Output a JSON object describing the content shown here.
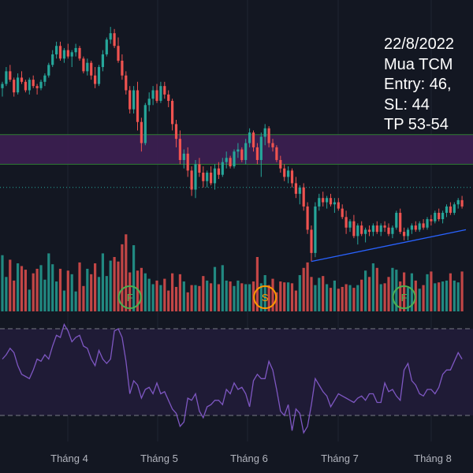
{
  "note": {
    "lines": [
      "22/8/2022",
      "Mua TCM",
      "Entry: 46,",
      "SL: 44",
      "TP 53-54"
    ]
  },
  "colors": {
    "background": "#131722",
    "up": "#26a69a",
    "down": "#ef5350",
    "zone_fill": "#3d1f52",
    "zone_border": "#2e7d32",
    "trendline": "#2962ff",
    "dotted_level": "#26a69a",
    "rsi_line": "#7e57c2",
    "rsi_band": "#1f1b36",
    "signal_green": "#4caf50",
    "signal_orange": "#ff9800",
    "axis_text": "#b2b5be"
  },
  "chart_data": {
    "type": "candlestick",
    "x_labels": [
      "Tháng 4",
      "Tháng 5",
      "Tháng 6",
      "Tháng 7",
      "Tháng 8"
    ],
    "price_zone": {
      "low": 46.6,
      "high": 48.0
    },
    "dotted_level": 45.5,
    "trendline": {
      "from": {
        "index": 80,
        "price": 42.0
      },
      "to": {
        "index": 120,
        "price": 43.5
      }
    },
    "price_range": [
      41.5,
      54.0
    ],
    "signals": [
      {
        "label": "F",
        "index": 33,
        "color": "green"
      },
      {
        "label": "S",
        "index": 68,
        "color": "orange"
      },
      {
        "label": "F",
        "index": 104,
        "color": "green"
      }
    ],
    "candles": [
      [
        50.2,
        50.5,
        49.8,
        50.4
      ],
      [
        50.4,
        51.2,
        50.3,
        51.0
      ],
      [
        51.0,
        51.3,
        50.5,
        50.6
      ],
      [
        50.6,
        50.7,
        49.8,
        50.0
      ],
      [
        50.0,
        50.9,
        49.9,
        50.7
      ],
      [
        50.7,
        51.0,
        50.4,
        50.5
      ],
      [
        50.5,
        50.6,
        50.0,
        50.1
      ],
      [
        50.1,
        50.7,
        49.9,
        50.6
      ],
      [
        50.6,
        50.8,
        50.2,
        50.3
      ],
      [
        50.3,
        50.4,
        49.9,
        50.2
      ],
      [
        50.2,
        50.6,
        50.1,
        50.5
      ],
      [
        50.5,
        50.9,
        50.3,
        50.8
      ],
      [
        50.8,
        51.4,
        50.7,
        51.3
      ],
      [
        51.3,
        52.0,
        51.2,
        51.8
      ],
      [
        51.8,
        52.4,
        51.6,
        52.2
      ],
      [
        52.2,
        52.4,
        51.5,
        51.6
      ],
      [
        51.6,
        52.1,
        51.4,
        52.0
      ],
      [
        52.0,
        52.3,
        51.6,
        51.7
      ],
      [
        51.7,
        52.0,
        51.2,
        51.9
      ],
      [
        51.9,
        52.3,
        51.7,
        52.1
      ],
      [
        52.1,
        52.2,
        51.5,
        51.6
      ],
      [
        51.6,
        51.7,
        50.9,
        51.0
      ],
      [
        51.0,
        51.6,
        50.8,
        51.4
      ],
      [
        51.4,
        51.5,
        50.6,
        50.8
      ],
      [
        50.8,
        51.2,
        50.2,
        50.4
      ],
      [
        50.4,
        51.3,
        50.3,
        51.2
      ],
      [
        51.2,
        52.0,
        51.0,
        51.8
      ],
      [
        51.8,
        52.6,
        51.7,
        52.5
      ],
      [
        52.5,
        53.1,
        52.3,
        52.8
      ],
      [
        52.8,
        53.0,
        52.1,
        52.2
      ],
      [
        52.2,
        52.6,
        51.4,
        51.5
      ],
      [
        51.5,
        51.8,
        50.6,
        50.8
      ],
      [
        50.8,
        51.0,
        49.9,
        50.1
      ],
      [
        50.1,
        50.3,
        49.0,
        49.2
      ],
      [
        49.2,
        50.3,
        49.0,
        50.1
      ],
      [
        50.1,
        50.5,
        48.2,
        48.6
      ],
      [
        48.6,
        48.8,
        47.2,
        47.6
      ],
      [
        47.6,
        49.5,
        47.5,
        49.4
      ],
      [
        49.4,
        50.0,
        49.1,
        49.7
      ],
      [
        49.7,
        50.3,
        49.4,
        50.1
      ],
      [
        50.1,
        50.4,
        49.5,
        49.6
      ],
      [
        49.6,
        50.5,
        49.5,
        50.3
      ],
      [
        50.3,
        50.5,
        49.7,
        49.9
      ],
      [
        49.9,
        50.1,
        49.3,
        49.6
      ],
      [
        49.6,
        49.7,
        48.2,
        48.5
      ],
      [
        48.5,
        48.7,
        47.4,
        47.8
      ],
      [
        47.8,
        48.2,
        46.6,
        46.8
      ],
      [
        46.8,
        47.3,
        46.4,
        47.1
      ],
      [
        47.1,
        47.4,
        46.0,
        46.3
      ],
      [
        46.3,
        46.5,
        45.1,
        45.4
      ],
      [
        45.4,
        46.8,
        45.0,
        46.6
      ],
      [
        46.6,
        46.9,
        46.0,
        46.2
      ],
      [
        46.2,
        46.5,
        45.5,
        45.8
      ],
      [
        45.8,
        46.3,
        45.5,
        46.2
      ],
      [
        46.2,
        46.5,
        45.6,
        45.7
      ],
      [
        45.7,
        46.6,
        45.4,
        46.4
      ],
      [
        46.4,
        46.7,
        45.9,
        46.1
      ],
      [
        46.1,
        46.9,
        46.0,
        46.7
      ],
      [
        46.7,
        47.2,
        46.4,
        46.9
      ],
      [
        46.9,
        47.0,
        46.4,
        46.5
      ],
      [
        46.5,
        47.3,
        46.4,
        47.2
      ],
      [
        47.2,
        47.6,
        46.9,
        47.3
      ],
      [
        47.3,
        47.4,
        46.7,
        46.8
      ],
      [
        46.8,
        47.8,
        46.6,
        47.6
      ],
      [
        47.6,
        48.3,
        47.4,
        48.1
      ],
      [
        48.1,
        48.2,
        47.2,
        47.4
      ],
      [
        47.4,
        47.6,
        46.6,
        46.8
      ],
      [
        46.8,
        48.1,
        46.0,
        47.9
      ],
      [
        47.9,
        48.5,
        47.5,
        48.3
      ],
      [
        48.3,
        48.4,
        47.4,
        47.6
      ],
      [
        47.6,
        47.8,
        47.2,
        47.4
      ],
      [
        47.4,
        47.5,
        46.7,
        46.8
      ],
      [
        46.8,
        47.0,
        46.2,
        46.4
      ],
      [
        46.4,
        46.6,
        45.8,
        46.0
      ],
      [
        46.0,
        46.5,
        45.7,
        46.3
      ],
      [
        46.3,
        46.4,
        45.5,
        45.7
      ],
      [
        45.7,
        46.0,
        45.0,
        45.2
      ],
      [
        45.2,
        45.6,
        44.7,
        45.5
      ],
      [
        45.5,
        45.7,
        44.4,
        44.6
      ],
      [
        44.6,
        44.8,
        43.3,
        43.5
      ],
      [
        43.5,
        43.7,
        42.0,
        42.4
      ],
      [
        42.4,
        44.8,
        42.2,
        44.6
      ],
      [
        44.6,
        45.2,
        44.4,
        45.0
      ],
      [
        45.0,
        45.3,
        44.6,
        44.8
      ],
      [
        44.8,
        45.1,
        44.5,
        45.0
      ],
      [
        45.0,
        45.2,
        44.6,
        44.7
      ],
      [
        44.7,
        45.0,
        44.3,
        44.8
      ],
      [
        44.8,
        45.0,
        44.4,
        44.5
      ],
      [
        44.5,
        44.7,
        44.0,
        44.1
      ],
      [
        44.1,
        44.4,
        43.3,
        43.6
      ],
      [
        43.6,
        44.0,
        43.4,
        43.9
      ],
      [
        43.9,
        44.2,
        43.1,
        43.2
      ],
      [
        43.2,
        43.8,
        42.8,
        43.7
      ],
      [
        43.7,
        43.9,
        43.2,
        43.3
      ],
      [
        43.3,
        43.6,
        42.9,
        43.5
      ],
      [
        43.5,
        43.7,
        43.2,
        43.4
      ],
      [
        43.4,
        43.8,
        43.2,
        43.7
      ],
      [
        43.7,
        43.9,
        43.3,
        43.4
      ],
      [
        43.4,
        43.8,
        43.2,
        43.7
      ],
      [
        43.7,
        43.9,
        43.4,
        43.6
      ],
      [
        43.6,
        43.8,
        43.2,
        43.3
      ],
      [
        43.3,
        43.7,
        43.1,
        43.6
      ],
      [
        43.6,
        44.4,
        43.5,
        44.3
      ],
      [
        44.3,
        44.5,
        43.3,
        43.4
      ],
      [
        43.4,
        43.6,
        43.0,
        43.2
      ],
      [
        43.2,
        43.6,
        43.0,
        43.5
      ],
      [
        43.5,
        43.8,
        43.3,
        43.7
      ],
      [
        43.7,
        43.9,
        43.4,
        43.5
      ],
      [
        43.5,
        43.9,
        43.4,
        43.8
      ],
      [
        43.8,
        44.0,
        43.5,
        43.6
      ],
      [
        43.6,
        44.1,
        43.5,
        44.0
      ],
      [
        44.0,
        44.2,
        43.7,
        43.9
      ],
      [
        43.9,
        44.4,
        43.8,
        44.3
      ],
      [
        44.3,
        44.5,
        43.9,
        44.0
      ],
      [
        44.0,
        44.4,
        43.8,
        44.3
      ],
      [
        44.3,
        44.7,
        44.1,
        44.6
      ],
      [
        44.6,
        44.8,
        44.2,
        44.3
      ],
      [
        44.3,
        44.8,
        44.2,
        44.7
      ],
      [
        44.7,
        45.0,
        44.5,
        44.9
      ],
      [
        44.9,
        45.1,
        44.5,
        44.6
      ]
    ],
    "volume": [
      62,
      38,
      57,
      34,
      53,
      50,
      46,
      24,
      42,
      47,
      51,
      35,
      64,
      52,
      33,
      47,
      23,
      45,
      41,
      22,
      54,
      28,
      47,
      41,
      53,
      38,
      64,
      39,
      56,
      60,
      55,
      74,
      85,
      43,
      73,
      45,
      48,
      42,
      36,
      30,
      34,
      29,
      36,
      23,
      42,
      27,
      41,
      33,
      21,
      29,
      29,
      28,
      39,
      34,
      31,
      49,
      30,
      51,
      34,
      33,
      28,
      34,
      31,
      30,
      30,
      33,
      60,
      31,
      40,
      29,
      36,
      21,
      33,
      32,
      32,
      31,
      23,
      40,
      48,
      54,
      38,
      29,
      37,
      39,
      30,
      26,
      34,
      25,
      27,
      30,
      29,
      26,
      29,
      35,
      45,
      38,
      53,
      48,
      30,
      31,
      38,
      48,
      46,
      33,
      43,
      26,
      42,
      34,
      25,
      29,
      41,
      44,
      31,
      32,
      33,
      34,
      42,
      34,
      32,
      44
    ],
    "rsi": [
      56,
      58,
      61,
      59,
      53,
      49,
      48,
      47,
      51,
      56,
      55,
      58,
      56,
      62,
      67,
      66,
      72,
      69,
      64,
      66,
      67,
      62,
      61,
      56,
      53,
      60,
      56,
      54,
      56,
      69,
      70,
      66,
      55,
      40,
      46,
      44,
      38,
      42,
      43,
      40,
      45,
      40,
      41,
      37,
      33,
      31,
      25,
      27,
      38,
      37,
      40,
      32,
      29,
      34,
      35,
      37,
      37,
      35,
      42,
      40,
      45,
      42,
      43,
      40,
      34,
      46,
      49,
      47,
      47,
      55,
      51,
      42,
      32,
      30,
      35,
      23,
      33,
      31,
      22,
      25,
      35,
      47,
      44,
      41,
      39,
      34,
      37,
      40,
      39,
      38,
      37,
      36,
      38,
      39,
      37,
      40,
      40,
      36,
      36,
      45,
      41,
      42,
      39,
      37,
      51,
      54,
      46,
      44,
      40,
      39,
      42,
      42,
      40,
      43,
      49,
      51,
      51,
      55,
      59,
      56
    ]
  }
}
